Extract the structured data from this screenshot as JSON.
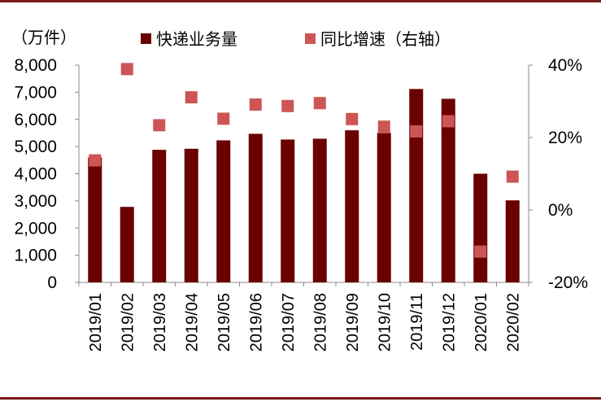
{
  "chart_data": {
    "type": "bar",
    "unit_label": "（万件）",
    "categories": [
      "2019/01",
      "2019/02",
      "2019/03",
      "2019/04",
      "2019/05",
      "2019/06",
      "2019/07",
      "2019/08",
      "2019/09",
      "2019/10",
      "2019/11",
      "2019/12",
      "2020/01",
      "2020/02"
    ],
    "series": [
      {
        "name": "快递业务量",
        "axis": "left",
        "mark": "bar",
        "color": "#6b0000",
        "values": [
          4600,
          2780,
          4880,
          4920,
          5230,
          5470,
          5260,
          5290,
          5600,
          5500,
          7120,
          6760,
          4000,
          3020
        ]
      },
      {
        "name": "同比增速（右轴）",
        "axis": "right",
        "mark": "square",
        "color": "#cd5555",
        "values": [
          13.7,
          38.9,
          23.4,
          31.1,
          25.2,
          29.1,
          28.7,
          29.5,
          25.1,
          23.0,
          21.7,
          24.5,
          -11.5,
          9.2
        ]
      }
    ],
    "left_axis": {
      "ylim": [
        0,
        8000
      ],
      "ticks": [
        "0",
        "1,000",
        "2,000",
        "3,000",
        "4,000",
        "5,000",
        "6,000",
        "7,000",
        "8,000"
      ]
    },
    "right_axis": {
      "ylim": [
        -20,
        40
      ],
      "ticks": [
        "-20%",
        "0%",
        "20%",
        "40%"
      ]
    },
    "legend_position": "top",
    "grid": false
  }
}
